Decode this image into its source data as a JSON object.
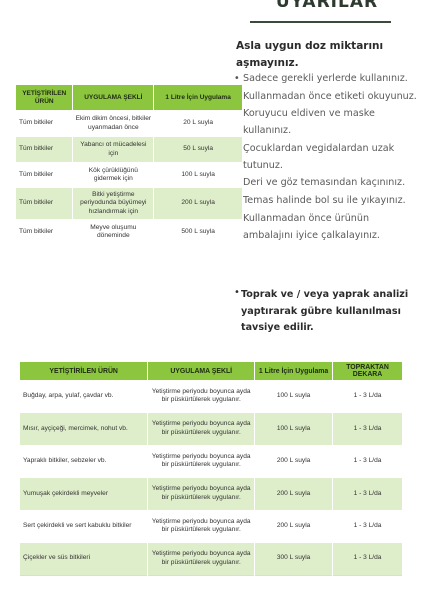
{
  "warnings": {
    "title": "UYARILAR",
    "lead": "Asla uygun doz miktarını aşmayınız.",
    "items": [
      "Sadece gerekli yerlerde kullanınız.",
      "Kullanmadan önce etiketi okuyunuz.",
      "Koruyucu eldiven ve maske kullanınız.",
      "Çocuklardan vegidalardan uzak tutunuz.",
      "Deri ve göz temasından kaçınınız.",
      "Temas halinde bol su ile yıkayınız.",
      "Kullanmadan önce ürünün ambalajını iyice çalkalayınız."
    ],
    "soil_note": "Toprak ve / veya yaprak analizi yaptırarak gübre kullanılması tavsiye edilir."
  },
  "table1": {
    "headers": [
      "YETİŞTİRİLEN ÜRÜN",
      "UYGULAMA ŞEKLİ",
      "1 Litre İçin Uygulama"
    ],
    "rows": [
      [
        "Tüm bitkiler",
        "Ekim dikim öncesi, bitkiler uyanmadan önce",
        "20 L suyla"
      ],
      [
        "Tüm bitkiler",
        "Yabancı ot mücadelesi için",
        "50 L suyla"
      ],
      [
        "Tüm bitkiler",
        "Kök çürüklüğünü gidermek için",
        "100 L suyla"
      ],
      [
        "Tüm bitkiler",
        "Bitki yetiştirme periyodunda büyümeyi hızlandırmak için",
        "200 L suyla"
      ],
      [
        "Tüm bitkiler",
        "Meyve oluşumu döneminde",
        "500 L suyla"
      ]
    ]
  },
  "table2": {
    "headers": [
      "YETİŞTİRİLEN ÜRÜN",
      "UYGULAMA ŞEKLİ",
      "1 Litre İçin Uygulama",
      "TOPRAKTAN DEKARA"
    ],
    "rows": [
      [
        "Buğday, arpa, yulaf, çavdar vb.",
        "Yetiştirme periyodu boyunca ayda bir püskürtülerek uygulanır.",
        "100 L suyla",
        "1 - 3 L/da"
      ],
      [
        "Mısır, ayçiçeği, mercimek, nohut vb.",
        "Yetiştirme periyodu boyunca ayda bir püskürtülerek uygulanır.",
        "100 L suyla",
        "1 - 3 L/da"
      ],
      [
        "Yapraklı bitkiler, sebzeler vb.",
        "Yetiştirme periyodu boyunca ayda bir püskürtülerek uygulanır.",
        "200 L suyla",
        "1 - 3 L/da"
      ],
      [
        "Yumuşak çekirdekli meyveler",
        "Yetiştirme periyodu boyunca ayda bir püskürtülerek uygulanır.",
        "200 L suyla",
        "1 - 3 L/da"
      ],
      [
        "Sert çekirdekli ve sert kabuklu bitkiler",
        "Yetiştirme periyodu boyunca ayda bir püskürtülerek uygulanır.",
        "200 L suyla",
        "1 - 3 L/da"
      ],
      [
        "Çiçekler ve süs bitkileri",
        "Yetiştirme periyodu boyunca ayda bir püskürtülerek uygulanır.",
        "300 L suyla",
        "1 - 3 L/da"
      ]
    ]
  }
}
